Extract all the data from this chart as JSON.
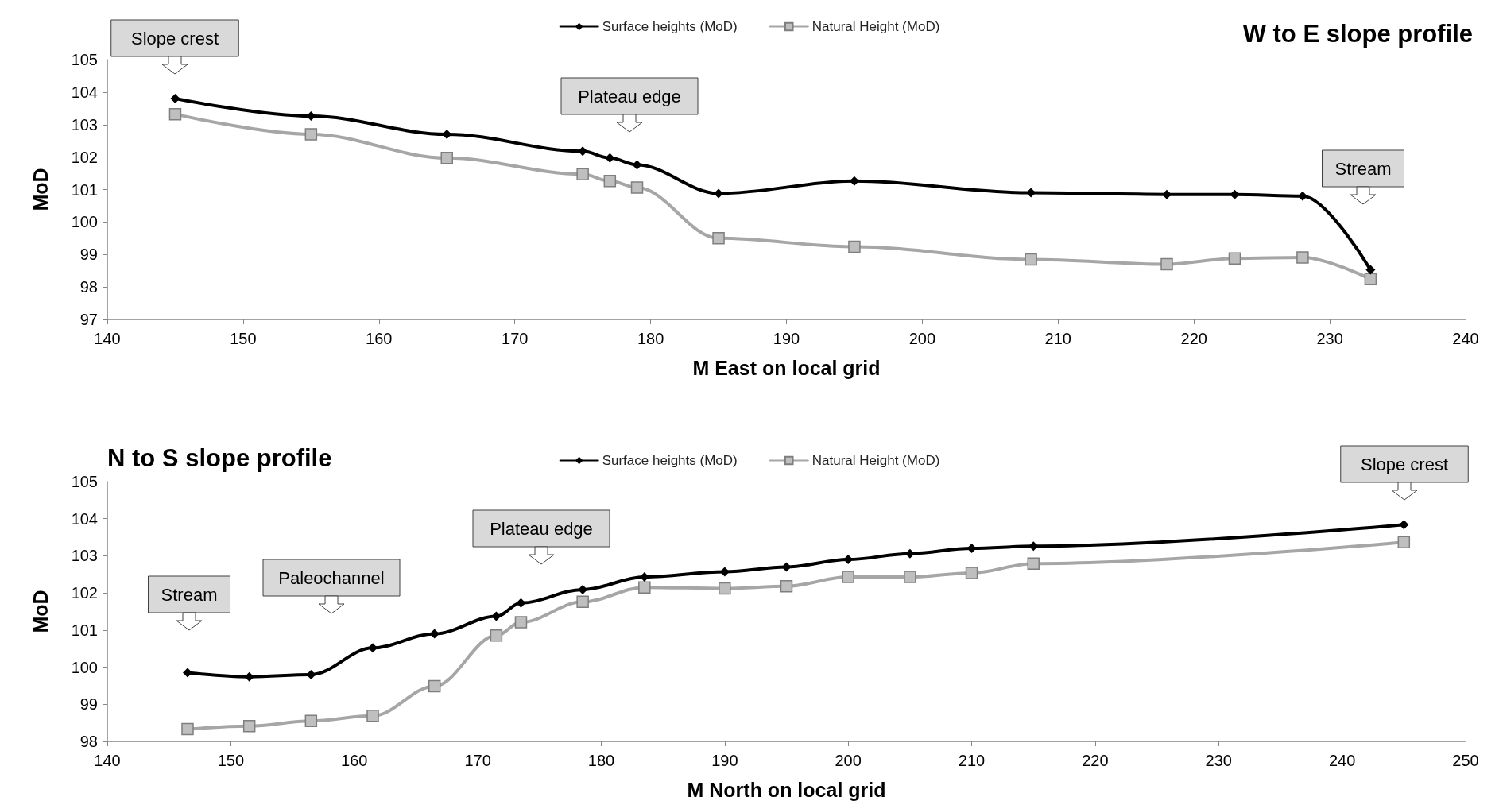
{
  "chart_data": [
    {
      "type": "line",
      "title": "W to E slope profile",
      "xlabel": "M East on local grid",
      "ylabel": "MoD",
      "xlim": [
        140,
        240
      ],
      "xticks": [
        140,
        150,
        160,
        170,
        180,
        190,
        200,
        210,
        220,
        230,
        240
      ],
      "ylim": [
        97,
        105
      ],
      "yticks": [
        97,
        98,
        99,
        100,
        101,
        102,
        103,
        104,
        105
      ],
      "grid": false,
      "legend": "top",
      "x": [
        145,
        155,
        165,
        175,
        177,
        179,
        185,
        195,
        208,
        218,
        223,
        228,
        233
      ],
      "series": [
        {
          "name": "Surface heights (MoD)",
          "color": "#000000",
          "marker": "diamond",
          "values": [
            103.8,
            103.26,
            102.7,
            102.18,
            101.97,
            101.76,
            100.88,
            101.26,
            100.9,
            100.85,
            100.85,
            100.8,
            98.53
          ]
        },
        {
          "name": "Natural Height (MoD)",
          "color": "#a6a6a6",
          "marker": "square",
          "values": [
            103.32,
            102.7,
            101.97,
            101.47,
            101.26,
            101.06,
            99.5,
            99.24,
            98.85,
            98.7,
            98.88,
            98.91,
            98.24
          ]
        }
      ],
      "annotations": [
        "Slope crest",
        "Plateau edge",
        "Stream"
      ]
    },
    {
      "type": "line",
      "title": "N to S slope profile",
      "xlabel": "M North on local grid",
      "ylabel": "MoD",
      "xlim": [
        140,
        250
      ],
      "xticks": [
        140,
        150,
        160,
        170,
        180,
        190,
        200,
        210,
        220,
        230,
        240,
        250
      ],
      "ylim": [
        98,
        105
      ],
      "yticks": [
        98,
        99,
        100,
        101,
        102,
        103,
        104,
        105
      ],
      "grid": false,
      "legend": "top",
      "x": [
        146.5,
        151.5,
        156.5,
        161.5,
        166.5,
        171.5,
        173.5,
        178.5,
        183.5,
        190,
        195,
        200,
        205,
        210,
        215,
        245
      ],
      "series": [
        {
          "name": "Surface heights (MoD)",
          "color": "#000000",
          "marker": "diamond",
          "values": [
            99.85,
            99.74,
            99.8,
            100.52,
            100.9,
            101.37,
            101.73,
            102.09,
            102.43,
            102.57,
            102.7,
            102.9,
            103.06,
            103.2,
            103.26,
            103.84
          ]
        },
        {
          "name": "Natural Height (MoD)",
          "color": "#a6a6a6",
          "marker": "square",
          "values": [
            98.33,
            98.41,
            98.55,
            98.69,
            99.49,
            100.85,
            101.21,
            101.76,
            102.15,
            102.12,
            102.18,
            102.43,
            102.43,
            102.54,
            102.79,
            103.37
          ]
        }
      ],
      "annotations": [
        "Stream",
        "Paleochannel",
        "Plateau edge",
        "Slope crest"
      ]
    }
  ]
}
